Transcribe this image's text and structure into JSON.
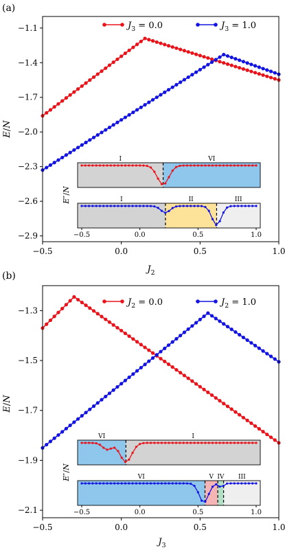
{
  "colors": {
    "series_a": "#e8141b",
    "series_b": "#1414e0",
    "phase_I": "#d3d3d3",
    "phase_II": "#fde29a",
    "phase_III": "#efefef",
    "phase_IV": "#b2dfc5",
    "phase_V": "#f6b5b5",
    "phase_VI": "#8ec6ec"
  },
  "chart_data": [
    {
      "panel_label": "(a)",
      "type": "line",
      "xlabel": "J_2",
      "ylabel": "E/N",
      "xlim": [
        -0.5,
        1.0
      ],
      "ylim": [
        -2.95,
        -1.0
      ],
      "xticks": [
        "-0.5",
        "0.0",
        "0.5",
        "1.0"
      ],
      "yticks": [
        "-1.1",
        "-1.4",
        "-1.7",
        "-2.0",
        "-2.3",
        "-2.6",
        "-2.9"
      ],
      "legend": "top",
      "series": [
        {
          "name": "J_3 = 0.0",
          "x_range": [
            -0.5,
            1.0
          ],
          "breakpoints": [
            [
              -0.5,
              -1.86
            ],
            [
              0.15,
              -1.19
            ],
            [
              1.0,
              -1.55
            ]
          ]
        },
        {
          "name": "J_3 = 1.0",
          "x_range": [
            -0.5,
            1.0
          ],
          "breakpoints": [
            [
              -0.5,
              -2.33
            ],
            [
              0.65,
              -1.33
            ],
            [
              1.0,
              -1.5
            ]
          ]
        }
      ],
      "insets": [
        {
          "ylabel": "E''/N",
          "series": "J_3 = 0.0",
          "show_xticks": false,
          "dips": [
            [
              0.2,
              1.0,
              0.05
            ]
          ],
          "phases": [
            {
              "label": "I",
              "from": -0.5,
              "to": 0.2,
              "color_key": "phase_I"
            },
            {
              "label": "VI",
              "from": 0.2,
              "to": 1.0,
              "color_key": "phase_VI"
            }
          ],
          "boundaries": [
            0.2
          ]
        },
        {
          "ylabel": "",
          "series": "J_3 = 1.0",
          "show_xticks": true,
          "xticks": [
            "-0.5",
            "0.0",
            "0.5",
            "1.0"
          ],
          "dips": [
            [
              0.22,
              0.35,
              0.04
            ],
            [
              0.66,
              1.0,
              0.04
            ]
          ],
          "phases": [
            {
              "label": "I",
              "from": -0.5,
              "to": 0.22,
              "color_key": "phase_I"
            },
            {
              "label": "II",
              "from": 0.22,
              "to": 0.66,
              "color_key": "phase_II"
            },
            {
              "label": "III",
              "from": 0.66,
              "to": 1.0,
              "color_key": "phase_III"
            }
          ],
          "boundaries": [
            0.22,
            0.66
          ]
        }
      ]
    },
    {
      "panel_label": "(b)",
      "type": "line",
      "xlabel": "J_3",
      "ylabel": "E/N",
      "xlim": [
        -0.5,
        1.0
      ],
      "ylim": [
        -2.13,
        -1.2
      ],
      "xticks": [
        "-0.5",
        "0.0",
        "0.5",
        "1.0"
      ],
      "yticks": [
        "-1.3",
        "-1.5",
        "-1.7",
        "-1.9",
        "-2.1"
      ],
      "legend": "top",
      "series": [
        {
          "name": "J_2 = 0.0",
          "x_range": [
            -0.5,
            1.0
          ],
          "breakpoints": [
            [
              -0.5,
              -1.37
            ],
            [
              -0.3,
              -1.245
            ],
            [
              1.0,
              -1.83
            ]
          ]
        },
        {
          "name": "J_2 = 1.0",
          "x_range": [
            -0.5,
            1.0
          ],
          "breakpoints": [
            [
              -0.5,
              -1.85
            ],
            [
              0.55,
              -1.31
            ],
            [
              1.0,
              -1.505
            ]
          ]
        }
      ],
      "insets": [
        {
          "ylabel": "E''/N",
          "series": "J_2 = 0.0",
          "show_xticks": false,
          "dips": [
            [
              -0.28,
              0.35,
              0.04
            ],
            [
              -0.12,
              1.0,
              0.05
            ]
          ],
          "phases": [
            {
              "label": "VI",
              "from": -0.5,
              "to": -0.12,
              "color_key": "phase_VI"
            },
            {
              "label": "I",
              "from": -0.12,
              "to": 1.0,
              "color_key": "phase_I"
            }
          ],
          "boundaries": [
            -0.12
          ]
        },
        {
          "ylabel": "",
          "series": "J_2 = 1.0",
          "show_xticks": true,
          "xticks": [
            "-0.5",
            "0.0",
            "0.5",
            "1.0"
          ],
          "dips": [
            [
              0.55,
              1.0,
              0.04
            ],
            [
              0.7,
              0.2,
              0.02
            ]
          ],
          "phases": [
            {
              "label": "VI",
              "from": -0.5,
              "to": 0.56,
              "color_key": "phase_VI"
            },
            {
              "label": "V",
              "from": 0.56,
              "to": 0.67,
              "color_key": "phase_V"
            },
            {
              "label": "IV",
              "from": 0.67,
              "to": 0.72,
              "color_key": "phase_IV"
            },
            {
              "label": "III",
              "from": 0.72,
              "to": 1.0,
              "color_key": "phase_III"
            }
          ],
          "boundaries": [
            0.56,
            0.67,
            0.72
          ]
        }
      ]
    }
  ]
}
